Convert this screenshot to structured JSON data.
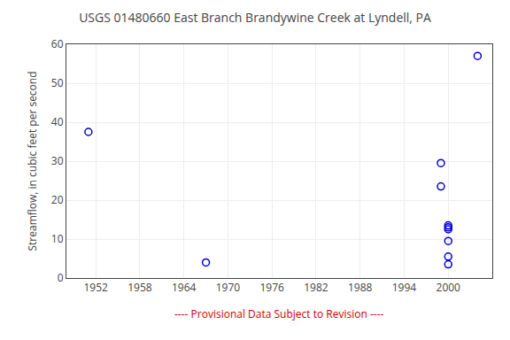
{
  "chart_data": {
    "type": "scatter",
    "title": "USGS 01480660 East Branch Brandywine Creek at Lyndell, PA",
    "ylabel": "Streamflow, in cubic feet per second",
    "x": [
      1951,
      1967,
      1999,
      1999,
      2000,
      2000,
      2000,
      2000,
      2000,
      2000,
      2004
    ],
    "values": [
      37.5,
      4.0,
      29.5,
      23.5,
      13.5,
      13.0,
      12.5,
      9.5,
      5.5,
      3.5,
      57.0
    ],
    "color": "#0000cc",
    "marker": "circle-open",
    "xlim": [
      1948,
      2006
    ],
    "ylim": [
      0,
      60
    ],
    "xticks": [
      1952,
      1958,
      1964,
      1970,
      1976,
      1982,
      1988,
      1994,
      2000
    ],
    "yticks": [
      0,
      10,
      20,
      30,
      40,
      50,
      60
    ],
    "grid": true,
    "annotations": [
      {
        "text": "---- Provisional Data Subject to Revision ----",
        "color": "#cc0000"
      }
    ]
  }
}
